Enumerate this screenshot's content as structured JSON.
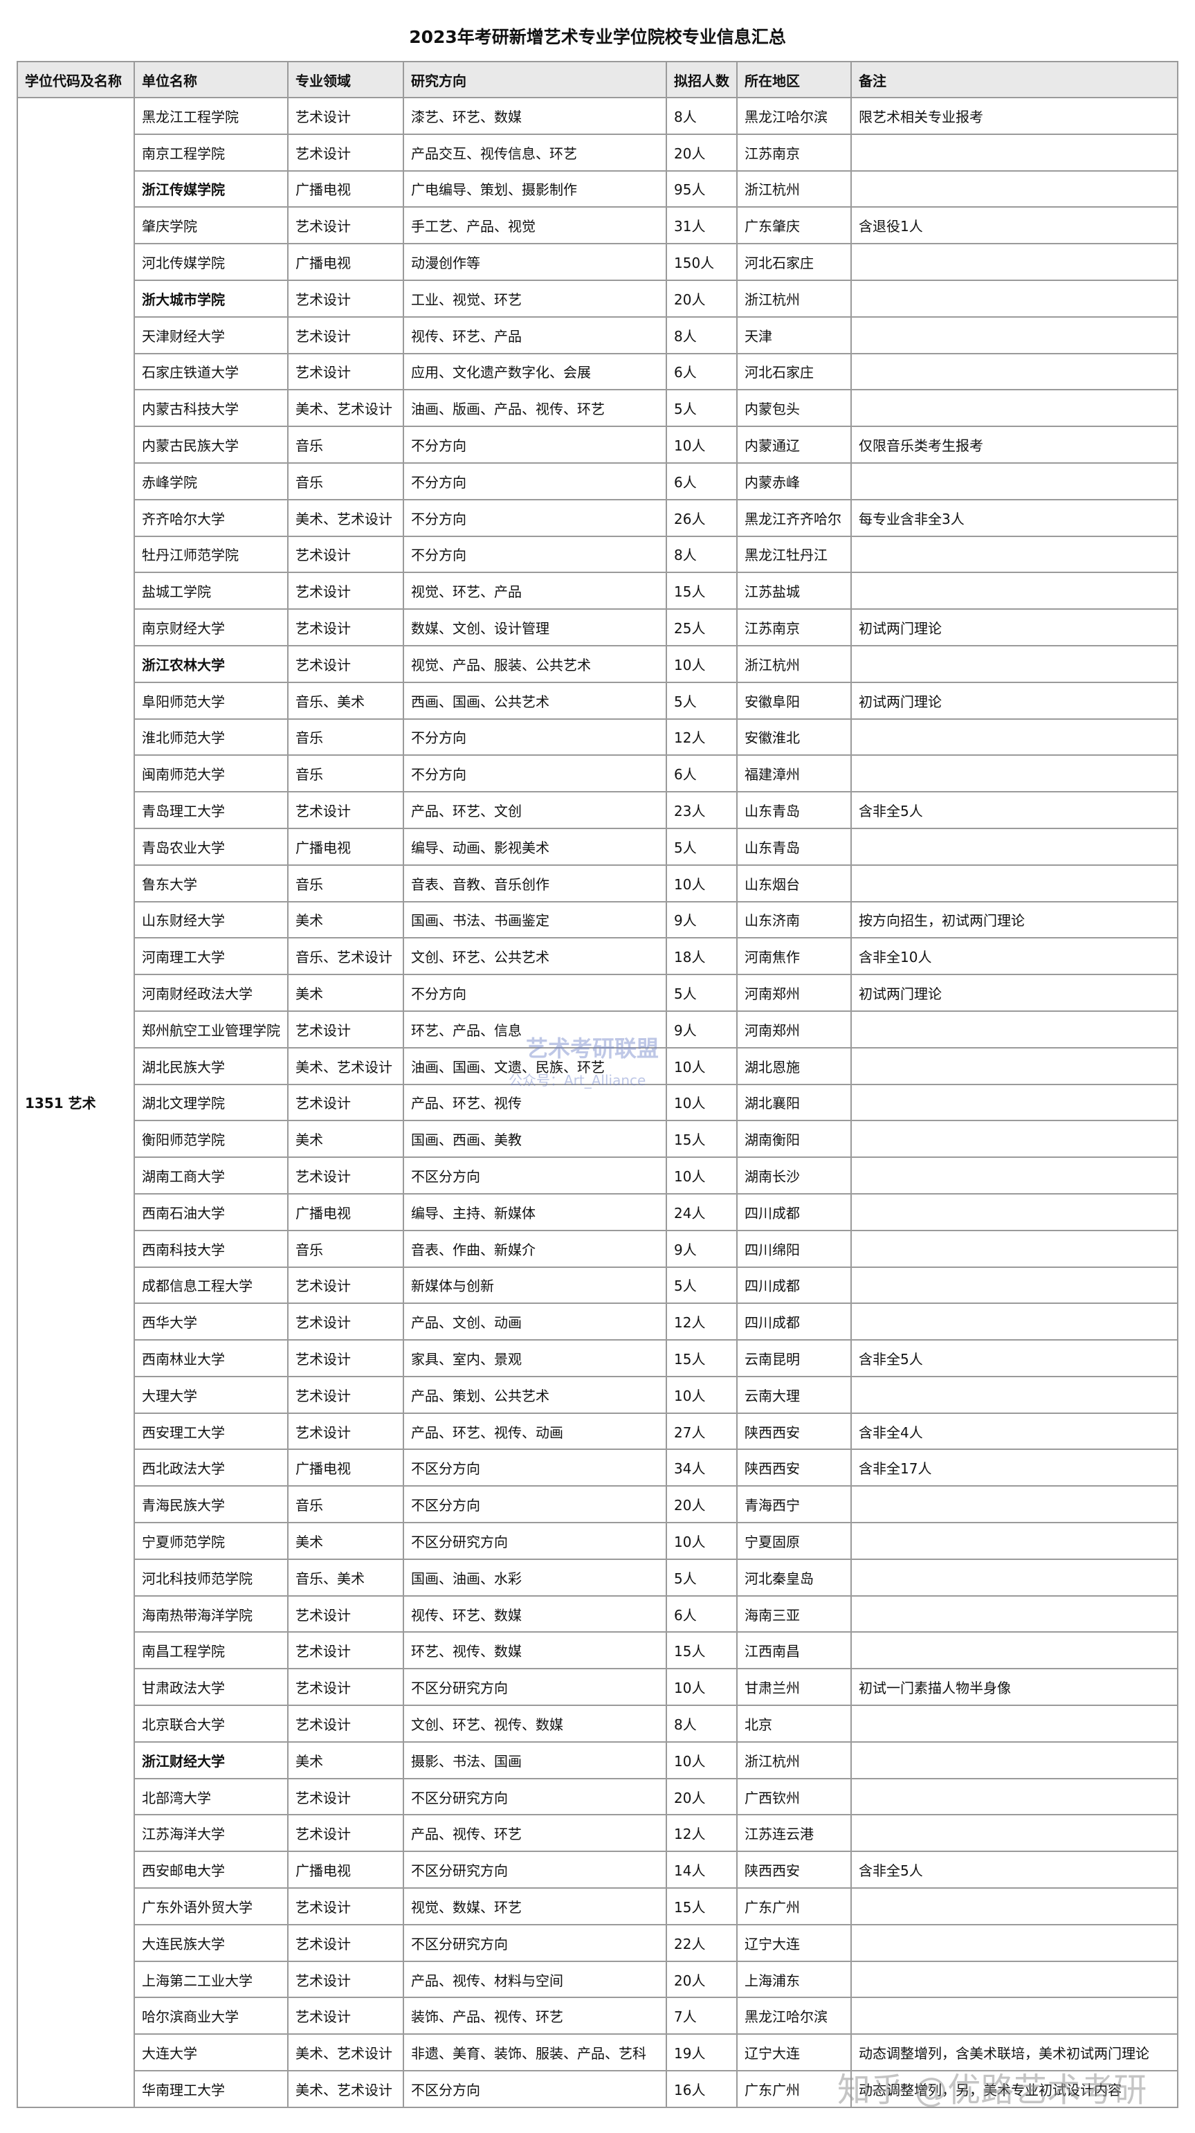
{
  "title": "2023年考研新增艺术专业学位院校专业信息汇总",
  "table": {
    "header": [
      "学位代码及名称",
      "单位名称",
      "专业领域",
      "研究方向",
      "拟招人数",
      "所在地区",
      "备注"
    ],
    "group": "1351 艺术",
    "bold_rows": [
      2,
      5,
      15,
      45
    ],
    "rows": [
      [
        "黑龙江工程学院",
        "艺术设计",
        "漆艺、环艺、数媒",
        "8人",
        "黑龙江哈尔滨",
        "限艺术相关专业报考"
      ],
      [
        "南京工程学院",
        "艺术设计",
        "产品交互、视传信息、环艺",
        "20人",
        "江苏南京",
        ""
      ],
      [
        "浙江传媒学院",
        "广播电视",
        "广电编导、策划、摄影制作",
        "95人",
        "浙江杭州",
        ""
      ],
      [
        "肇庆学院",
        "艺术设计",
        "手工艺、产品、视觉",
        "31人",
        "广东肇庆",
        "含退役1人"
      ],
      [
        "河北传媒学院",
        "广播电视",
        "动漫创作等",
        "150人",
        "河北石家庄",
        ""
      ],
      [
        "浙大城市学院",
        "艺术设计",
        "工业、视觉、环艺",
        "20人",
        "浙江杭州",
        ""
      ],
      [
        "天津财经大学",
        "艺术设计",
        "视传、环艺、产品",
        "8人",
        "天津",
        ""
      ],
      [
        "石家庄铁道大学",
        "艺术设计",
        "应用、文化遗产数字化、会展",
        "6人",
        "河北石家庄",
        ""
      ],
      [
        "内蒙古科技大学",
        "美术、艺术设计",
        "油画、版画、产品、视传、环艺",
        "5人",
        "内蒙包头",
        ""
      ],
      [
        "内蒙古民族大学",
        "音乐",
        "不分方向",
        "10人",
        "内蒙通辽",
        "仅限音乐类考生报考"
      ],
      [
        "赤峰学院",
        "音乐",
        "不分方向",
        "6人",
        "内蒙赤峰",
        ""
      ],
      [
        "齐齐哈尔大学",
        "美术、艺术设计",
        "不分方向",
        "26人",
        "黑龙江齐齐哈尔",
        "每专业含非全3人"
      ],
      [
        "牡丹江师范学院",
        "艺术设计",
        "不分方向",
        "8人",
        "黑龙江牡丹江",
        ""
      ],
      [
        "盐城工学院",
        "艺术设计",
        "视觉、环艺、产品",
        "15人",
        "江苏盐城",
        ""
      ],
      [
        "南京财经大学",
        "艺术设计",
        "数媒、文创、设计管理",
        "25人",
        "江苏南京",
        "初试两门理论"
      ],
      [
        "浙江农林大学",
        "艺术设计",
        "视觉、产品、服装、公共艺术",
        "10人",
        "浙江杭州",
        ""
      ],
      [
        "阜阳师范大学",
        "音乐、美术",
        "西画、国画、公共艺术",
        "5人",
        "安徽阜阳",
        "初试两门理论"
      ],
      [
        "淮北师范大学",
        "音乐",
        "不分方向",
        "12人",
        "安徽淮北",
        ""
      ],
      [
        "闽南师范大学",
        "音乐",
        "不分方向",
        "6人",
        "福建漳州",
        ""
      ],
      [
        "青岛理工大学",
        "艺术设计",
        "产品、环艺、文创",
        "23人",
        "山东青岛",
        "含非全5人"
      ],
      [
        "青岛农业大学",
        "广播电视",
        "编导、动画、影视美术",
        "5人",
        "山东青岛",
        ""
      ],
      [
        "鲁东大学",
        "音乐",
        "音表、音教、音乐创作",
        "10人",
        "山东烟台",
        ""
      ],
      [
        "山东财经大学",
        "美术",
        "国画、书法、书画鉴定",
        "9人",
        "山东济南",
        "按方向招生，初试两门理论"
      ],
      [
        "河南理工大学",
        "音乐、艺术设计",
        "文创、环艺、公共艺术",
        "18人",
        "河南焦作",
        "含非全10人"
      ],
      [
        "河南财经政法大学",
        "美术",
        "不分方向",
        "5人",
        "河南郑州",
        "初试两门理论"
      ],
      [
        "郑州航空工业管理学院",
        "艺术设计",
        "环艺、产品、信息",
        "9人",
        "河南郑州",
        ""
      ],
      [
        "湖北民族大学",
        "美术、艺术设计",
        "油画、国画、文遗、民族、环艺",
        "10人",
        "湖北恩施",
        ""
      ],
      [
        "湖北文理学院",
        "艺术设计",
        "产品、环艺、视传",
        "10人",
        "湖北襄阳",
        ""
      ],
      [
        "衡阳师范学院",
        "美术",
        "国画、西画、美教",
        "15人",
        "湖南衡阳",
        ""
      ],
      [
        "湖南工商大学",
        "艺术设计",
        "不区分方向",
        "10人",
        "湖南长沙",
        ""
      ],
      [
        "西南石油大学",
        "广播电视",
        "编导、主持、新媒体",
        "24人",
        "四川成都",
        ""
      ],
      [
        "西南科技大学",
        "音乐",
        "音表、作曲、新媒介",
        "9人",
        "四川绵阳",
        ""
      ],
      [
        "成都信息工程大学",
        "艺术设计",
        "新媒体与创新",
        "5人",
        "四川成都",
        ""
      ],
      [
        "西华大学",
        "艺术设计",
        "产品、文创、动画",
        "12人",
        "四川成都",
        ""
      ],
      [
        "西南林业大学",
        "艺术设计",
        "家具、室内、景观",
        "15人",
        "云南昆明",
        "含非全5人"
      ],
      [
        "大理大学",
        "艺术设计",
        "产品、策划、公共艺术",
        "10人",
        "云南大理",
        ""
      ],
      [
        "西安理工大学",
        "艺术设计",
        "产品、环艺、视传、动画",
        "27人",
        "陕西西安",
        "含非全4人"
      ],
      [
        "西北政法大学",
        "广播电视",
        "不区分方向",
        "34人",
        "陕西西安",
        "含非全17人"
      ],
      [
        "青海民族大学",
        "音乐",
        "不区分方向",
        "20人",
        "青海西宁",
        ""
      ],
      [
        "宁夏师范学院",
        "美术",
        "不区分研究方向",
        "10人",
        "宁夏固原",
        ""
      ],
      [
        "河北科技师范学院",
        "音乐、美术",
        "国画、油画、水彩",
        "5人",
        "河北秦皇岛",
        ""
      ],
      [
        "海南热带海洋学院",
        "艺术设计",
        "视传、环艺、数媒",
        "6人",
        "海南三亚",
        ""
      ],
      [
        "南昌工程学院",
        "艺术设计",
        "环艺、视传、数媒",
        "15人",
        "江西南昌",
        ""
      ],
      [
        "甘肃政法大学",
        "艺术设计",
        "不区分研究方向",
        "10人",
        "甘肃兰州",
        "初试一门素描人物半身像"
      ],
      [
        "北京联合大学",
        "艺术设计",
        "文创、环艺、视传、数媒",
        "8人",
        "北京",
        ""
      ],
      [
        "浙江财经大学",
        "美术",
        "摄影、书法、国画",
        "10人",
        "浙江杭州",
        ""
      ],
      [
        "北部湾大学",
        "艺术设计",
        "不区分研究方向",
        "20人",
        "广西钦州",
        ""
      ],
      [
        "江苏海洋大学",
        "艺术设计",
        "产品、视传、环艺",
        "12人",
        "江苏连云港",
        ""
      ],
      [
        "西安邮电大学",
        "广播电视",
        "不区分研究方向",
        "14人",
        "陕西西安",
        "含非全5人"
      ],
      [
        "广东外语外贸大学",
        "艺术设计",
        "视觉、数媒、环艺",
        "15人",
        "广东广州",
        ""
      ],
      [
        "大连民族大学",
        "艺术设计",
        "不区分研究方向",
        "22人",
        "辽宁大连",
        ""
      ],
      [
        "上海第二工业大学",
        "艺术设计",
        "产品、视传、材料与空间",
        "20人",
        "上海浦东",
        ""
      ],
      [
        "哈尔滨商业大学",
        "艺术设计",
        "装饰、产品、视传、环艺",
        "7人",
        "黑龙江哈尔滨",
        ""
      ],
      [
        "大连大学",
        "美术、艺术设计",
        "非遗、美育、装饰、服装、产品、艺科",
        "19人",
        "辽宁大连",
        "动态调整增列，含美术联培，美术初试两门理论"
      ],
      [
        "华南理工大学",
        "美术、艺术设计",
        "不区分方向",
        "16人",
        "广东广州",
        "动态调整增列，另，美术专业初试设计内容"
      ]
    ]
  },
  "watermarks": [
    "艺术考研联盟",
    "公众号：Art_Alliance",
    "知乎 @优路艺术考研"
  ]
}
